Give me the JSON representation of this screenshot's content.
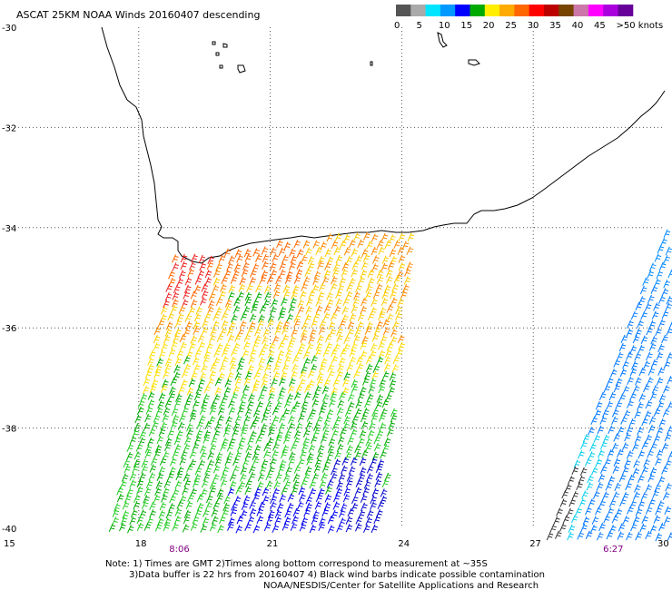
{
  "title": "ASCAT 25KM NOAA Winds 20160407 descending",
  "legend": {
    "colors": [
      "#555555",
      "#aaaaaa",
      "#00e5ff",
      "#0099ff",
      "#0000ff",
      "#00aa00",
      "#ffee00",
      "#ffaa00",
      "#ff6600",
      "#ff0000",
      "#bb0000",
      "#774400",
      "#cc77aa",
      "#ff00ff",
      "#aa00dd",
      "#660099"
    ],
    "labels": [
      "0",
      "5",
      "10",
      "15",
      "20",
      "25",
      "30",
      "35",
      "40",
      "45",
      ">50 knots"
    ]
  },
  "map": {
    "lon_range": [
      15,
      30
    ],
    "lat_range": [
      -40,
      -30
    ],
    "lon_ticks": [
      "15",
      "18",
      "21",
      "24",
      "27",
      "30"
    ],
    "lat_ticks": [
      "-30",
      "-32",
      "-34",
      "-36",
      "-38",
      "-40"
    ]
  },
  "pass_times": [
    {
      "label": "8:06",
      "lon": 18.9
    },
    {
      "label": "6:27",
      "lon": 28.8
    }
  ],
  "notes": [
    "Note: 1) Times are GMT 2)Times along bottom correspond to measurement at ~35S",
    "3)Data buffer is 22 hrs from 20160407 4) Black wind barbs indicate possible contamination",
    "NOAA/NESDIS/Center for Satellite Applications and Research"
  ]
}
